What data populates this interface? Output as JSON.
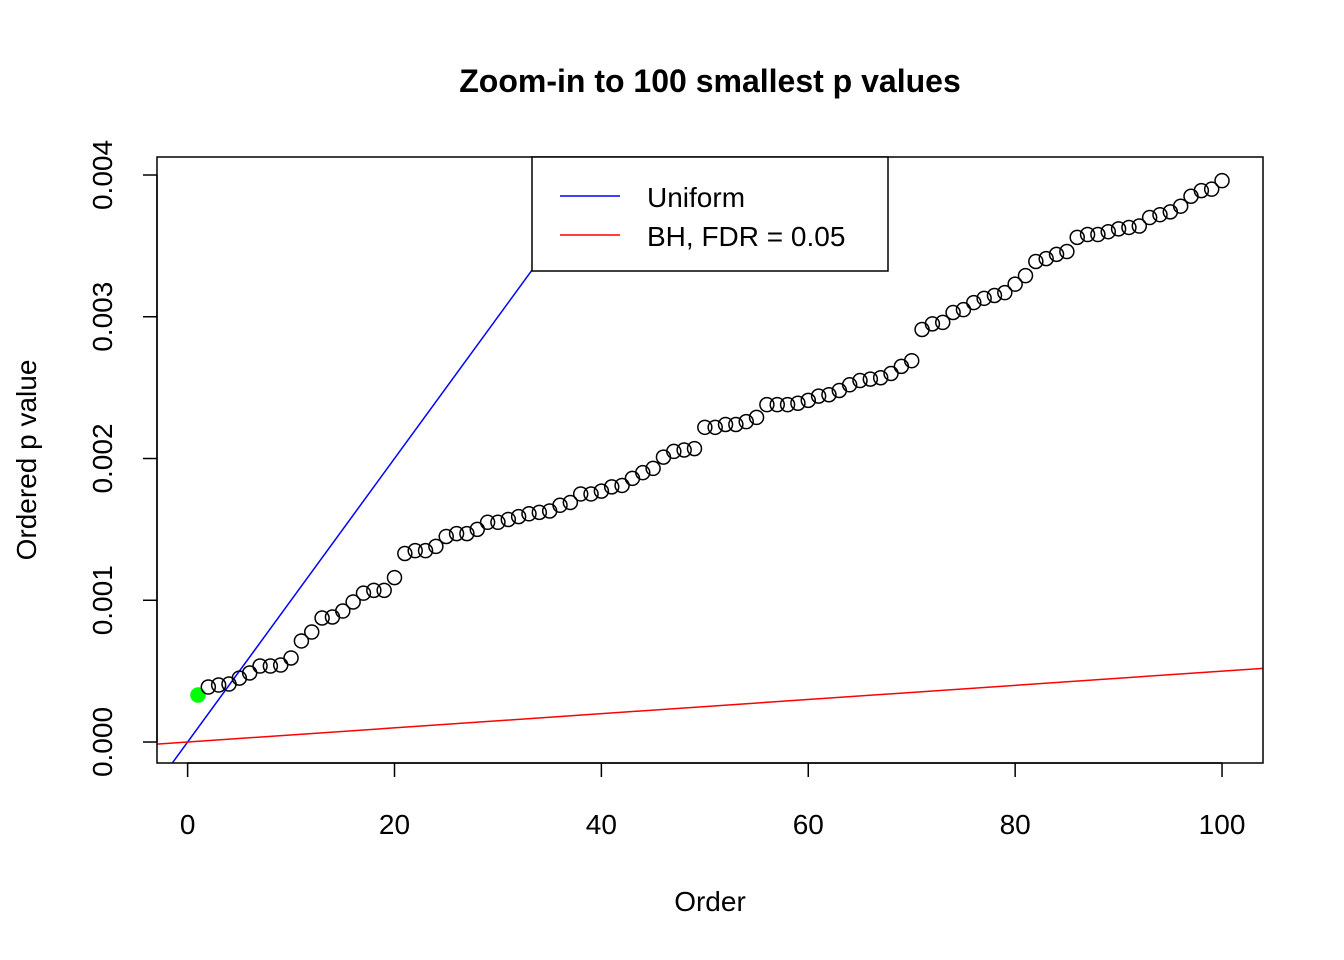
{
  "chart_data": {
    "type": "scatter",
    "title": "Zoom-in to 100 smallest p values",
    "xlabel": "Order",
    "ylabel": "Ordered p value",
    "xlim": [
      -2.96,
      103.96
    ],
    "ylim": [
      -0.000148,
      0.004127
    ],
    "xticks": [
      0,
      20,
      40,
      60,
      80,
      100
    ],
    "xtick_labels": [
      "0",
      "20",
      "40",
      "60",
      "80",
      "100"
    ],
    "yticks": [
      0,
      0.001,
      0.002,
      0.003,
      0.004
    ],
    "ytick_labels": [
      "0.000",
      "0.001",
      "0.002",
      "0.003",
      "0.004"
    ],
    "grid": false,
    "legend": {
      "placement": "top-center",
      "entries": [
        {
          "label": "Uniform",
          "color": "#0000ff"
        },
        {
          "label": "BH, FDR = 0.05",
          "color": "#ff0000"
        }
      ]
    },
    "lines": [
      {
        "name": "Uniform",
        "slope": 0.0001,
        "intercept": 0,
        "color": "#0000ff"
      },
      {
        "name": "BH, FDR = 0.05",
        "slope": 5e-06,
        "intercept": 0,
        "color": "#ff0000"
      }
    ],
    "highlight": {
      "x": 1,
      "color": "#00ff00"
    },
    "series": [
      {
        "name": "Ordered p values",
        "x": [
          1,
          2,
          3,
          4,
          5,
          6,
          7,
          8,
          9,
          10,
          11,
          12,
          13,
          14,
          15,
          16,
          17,
          18,
          19,
          20,
          21,
          22,
          23,
          24,
          25,
          26,
          27,
          28,
          29,
          30,
          31,
          32,
          33,
          34,
          35,
          36,
          37,
          38,
          39,
          40,
          41,
          42,
          43,
          44,
          45,
          46,
          47,
          48,
          49,
          50,
          51,
          52,
          53,
          54,
          55,
          56,
          57,
          58,
          59,
          60,
          61,
          62,
          63,
          64,
          65,
          66,
          67,
          68,
          69,
          70,
          71,
          72,
          73,
          74,
          75,
          76,
          77,
          78,
          79,
          80,
          81,
          82,
          83,
          84,
          85,
          86,
          87,
          88,
          89,
          90,
          91,
          92,
          93,
          94,
          95,
          96,
          97,
          98,
          99,
          100
        ],
        "y": [
          0.000332,
          0.000388,
          0.000402,
          0.000409,
          0.000451,
          0.000487,
          0.000536,
          0.000536,
          0.000543,
          0.000593,
          0.000713,
          0.000776,
          0.000875,
          0.000882,
          0.000924,
          0.000988,
          0.00105,
          0.00107,
          0.00107,
          0.00116,
          0.00133,
          0.00135,
          0.00135,
          0.00138,
          0.00145,
          0.00147,
          0.00147,
          0.0015,
          0.00155,
          0.00155,
          0.00157,
          0.00159,
          0.00161,
          0.00162,
          0.00163,
          0.00167,
          0.00169,
          0.00175,
          0.00175,
          0.00177,
          0.0018,
          0.00181,
          0.00186,
          0.0019,
          0.00193,
          0.00201,
          0.00205,
          0.00206,
          0.00207,
          0.00222,
          0.00222,
          0.00224,
          0.00224,
          0.00226,
          0.00229,
          0.00238,
          0.00238,
          0.00238,
          0.00239,
          0.00241,
          0.00244,
          0.00245,
          0.00248,
          0.00252,
          0.00255,
          0.00256,
          0.00257,
          0.0026,
          0.00265,
          0.00269,
          0.00291,
          0.00295,
          0.00296,
          0.00303,
          0.00305,
          0.0031,
          0.00313,
          0.00315,
          0.00317,
          0.00323,
          0.00329,
          0.00339,
          0.00341,
          0.00344,
          0.00346,
          0.00356,
          0.00358,
          0.00358,
          0.0036,
          0.00362,
          0.00363,
          0.00364,
          0.0037,
          0.00372,
          0.00374,
          0.00378,
          0.00385,
          0.00389,
          0.0039,
          0.00396
        ]
      }
    ]
  }
}
